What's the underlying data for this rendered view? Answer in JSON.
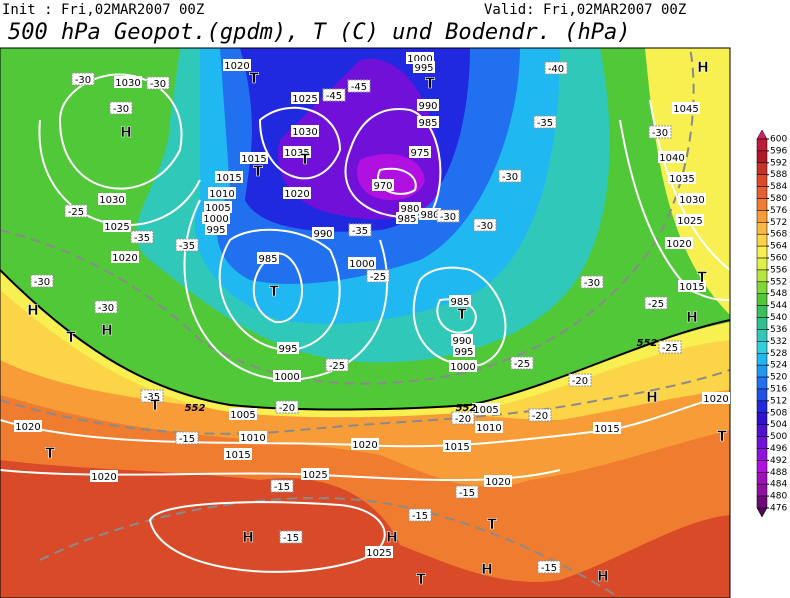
{
  "header": {
    "init": "Init : Fri,02MAR2007 00Z",
    "valid": "Valid: Fri,02MAR2007 00Z",
    "title": "500 hPa Geopot.(gpdm), T (C) und Bodendr. (hPa)"
  },
  "map": {
    "pressure_labels": [
      "1020",
      "1025",
      "1030",
      "1035",
      "1015",
      "1015",
      "1020",
      "1010",
      "1005",
      "1000",
      "995",
      "990",
      "985",
      "1000",
      "1030",
      "1030",
      "1025",
      "1020",
      "1000",
      "995",
      "990",
      "985",
      "975",
      "970",
      "980",
      "985",
      "980",
      "985",
      "990",
      "995",
      "1000",
      "995",
      "1000",
      "1005",
      "1010",
      "1015",
      "1020",
      "1020",
      "1020",
      "1025",
      "1015",
      "1010",
      "1005",
      "1020",
      "1015",
      "1025",
      "1045",
      "1040",
      "1035",
      "1030",
      "1025",
      "1020",
      "1015",
      "1020"
    ],
    "temperature_labels": [
      "-30",
      "-30",
      "-30",
      "-25",
      "-35",
      "-35",
      "-30",
      "-30",
      "-45",
      "-45",
      "-35",
      "-30",
      "-25",
      "-30",
      "-30",
      "-35",
      "-40",
      "-30",
      "-30",
      "-25",
      "-25",
      "-25",
      "-25",
      "-35",
      "-20",
      "-20",
      "-20",
      "-20",
      "-15",
      "-15",
      "-15",
      "-15",
      "-15",
      "-15"
    ],
    "centers": [
      "T",
      "H",
      "T",
      "T",
      "T",
      "H",
      "T",
      "H",
      "T",
      "H",
      "T",
      "T",
      "H",
      "T",
      "H",
      "T",
      "T",
      "T",
      "H",
      "H",
      "H",
      "T",
      "H"
    ],
    "contour_labels": [
      "552",
      "552",
      "552"
    ]
  },
  "colorbar": {
    "ticks": [
      600,
      596,
      592,
      588,
      584,
      580,
      576,
      572,
      568,
      564,
      560,
      556,
      552,
      548,
      544,
      540,
      536,
      532,
      528,
      524,
      520,
      516,
      512,
      508,
      504,
      500,
      496,
      492,
      488,
      484,
      480,
      476
    ],
    "colors": [
      "#d0206a",
      "#c01a3a",
      "#b01828",
      "#c83228",
      "#dc4a28",
      "#e86030",
      "#f07c30",
      "#f89c38",
      "#fbb840",
      "#fcd448",
      "#f8f050",
      "#e0f048",
      "#b8e640",
      "#80d838",
      "#50c838",
      "#38c060",
      "#30c090",
      "#30c8b8",
      "#30d0e0",
      "#20b8f0",
      "#2098f0",
      "#2070f0",
      "#2050e8",
      "#2028e0",
      "#3010d0",
      "#5010d0",
      "#7010d8",
      "#9010e0",
      "#b010e0",
      "#a010b8",
      "#9010a0",
      "#70087c",
      "#50045a"
    ]
  }
}
